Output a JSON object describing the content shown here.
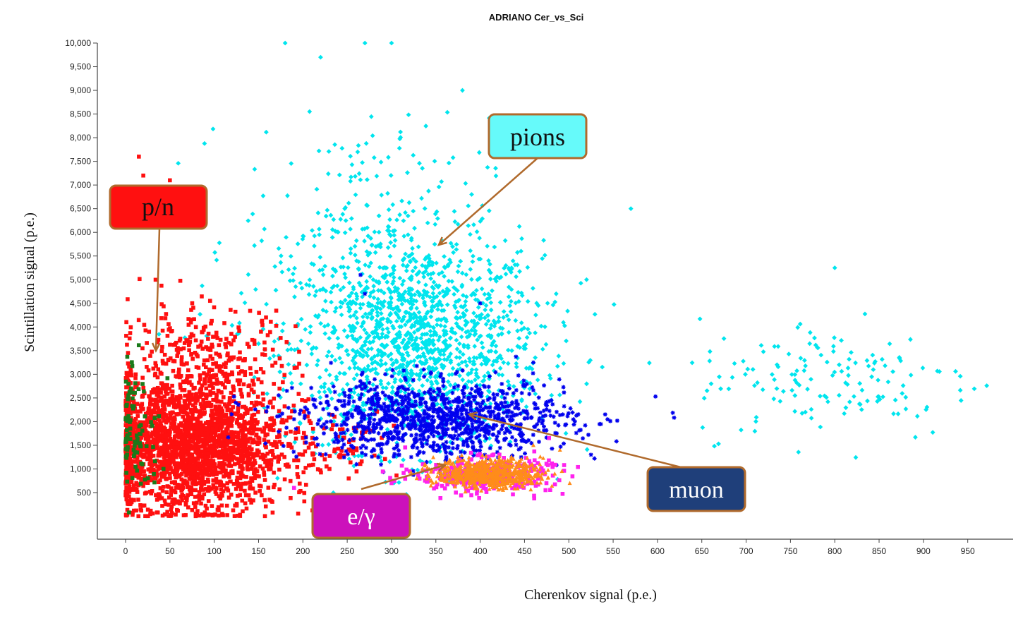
{
  "chart_data": {
    "type": "scatter",
    "title": "ADRIANO Cer_vs_Sci",
    "xlabel": "Cherenkov signal (p.e.)",
    "ylabel": "Scintillation signal (p.e.)",
    "xlim": [
      -30,
      1000
    ],
    "ylim": [
      -500,
      10000
    ],
    "x_ticks": [
      0,
      50,
      100,
      150,
      200,
      250,
      300,
      350,
      400,
      450,
      500,
      550,
      600,
      650,
      700,
      750,
      800,
      850,
      900,
      950
    ],
    "y_ticks": [
      500,
      1000,
      1500,
      2000,
      2500,
      3000,
      3500,
      4000,
      4500,
      5000,
      5500,
      6000,
      6500,
      7000,
      7500,
      8000,
      8500,
      9000,
      9500,
      10000
    ],
    "y_tick_labels": [
      "500",
      "1,000",
      "1,500",
      "2,000",
      "2,500",
      "3,000",
      "3,500",
      "4,000",
      "4,500",
      "5,000",
      "5,500",
      "6,000",
      "6,500",
      "7,000",
      "7,500",
      "8,000",
      "8,500",
      "9,000",
      "9,500",
      "10,000"
    ],
    "grid": false,
    "legend": "none",
    "series": [
      {
        "name": "pions",
        "color": "#00e5ee",
        "marker": "diamond",
        "clusters": [
          {
            "center": [
              330,
              3600
            ],
            "spread": [
              70,
              1100
            ],
            "count": 1400
          },
          {
            "center": [
              270,
              5800
            ],
            "spread": [
              70,
              1300
            ],
            "count": 260
          },
          {
            "center": [
              800,
              2900
            ],
            "spread": [
              80,
              650
            ],
            "count": 150
          }
        ],
        "points": [
          [
            180,
            10000
          ],
          [
            270,
            10000
          ],
          [
            300,
            10000
          ],
          [
            220,
            9700
          ],
          [
            380,
            9000
          ],
          [
            570,
            6500
          ],
          [
            800,
            5250
          ],
          [
            520,
            5000
          ]
        ]
      },
      {
        "name": "p/n",
        "color": "#ff1010",
        "marker": "square",
        "clusters": [
          {
            "center": [
              70,
              1500
            ],
            "spread": [
              55,
              700
            ],
            "count": 2300
          },
          {
            "center": [
              90,
              3300
            ],
            "spread": [
              50,
              600
            ],
            "count": 300
          },
          {
            "center": [
              250,
              1600
            ],
            "spread": [
              25,
              350
            ],
            "count": 60
          }
        ],
        "points": [
          [
            15,
            7600
          ],
          [
            20,
            7200
          ],
          [
            50,
            7100
          ],
          [
            230,
            1000
          ]
        ]
      },
      {
        "name": "green",
        "color": "#1a7a1a",
        "marker": "square",
        "clusters": [
          {
            "center": [
              10,
              1700
            ],
            "spread": [
              15,
              700
            ],
            "count": 90
          }
        ],
        "points": []
      },
      {
        "name": "muon",
        "color": "#0000ee",
        "marker": "asterisk",
        "clusters": [
          {
            "center": [
              350,
              2050
            ],
            "spread": [
              75,
              400
            ],
            "count": 1100
          }
        ],
        "points": [
          [
            525,
            1300
          ],
          [
            460,
            3250
          ],
          [
            270,
            4700
          ],
          [
            265,
            5100
          ],
          [
            400,
            4500
          ]
        ]
      },
      {
        "name": "e/gamma",
        "color": "#ff22ee",
        "marker": "square",
        "clusters": [
          {
            "center": [
              405,
              880
            ],
            "spread": [
              38,
              180
            ],
            "count": 350
          }
        ],
        "points": [
          [
            190,
            600
          ],
          [
            300,
            700
          ]
        ]
      },
      {
        "name": "orange",
        "color": "#ff8c1a",
        "marker": "triangle",
        "clusters": [
          {
            "center": [
              410,
              900
            ],
            "spread": [
              30,
              150
            ],
            "count": 650
          }
        ],
        "points": [
          [
            470,
            900
          ],
          [
            490,
            1400
          ],
          [
            460,
            1500
          ]
        ]
      }
    ],
    "annotations": [
      {
        "text": "pions",
        "bg": "#66fafa",
        "color": "#111111"
      },
      {
        "text": "p/n",
        "bg": "#ff1010",
        "color": "#111111"
      },
      {
        "text": "muon",
        "bg": "#1f3f7a",
        "color": "#ffffff"
      },
      {
        "text": "e/γ",
        "bg": "#cc11bb",
        "color": "#ffffff"
      }
    ]
  }
}
